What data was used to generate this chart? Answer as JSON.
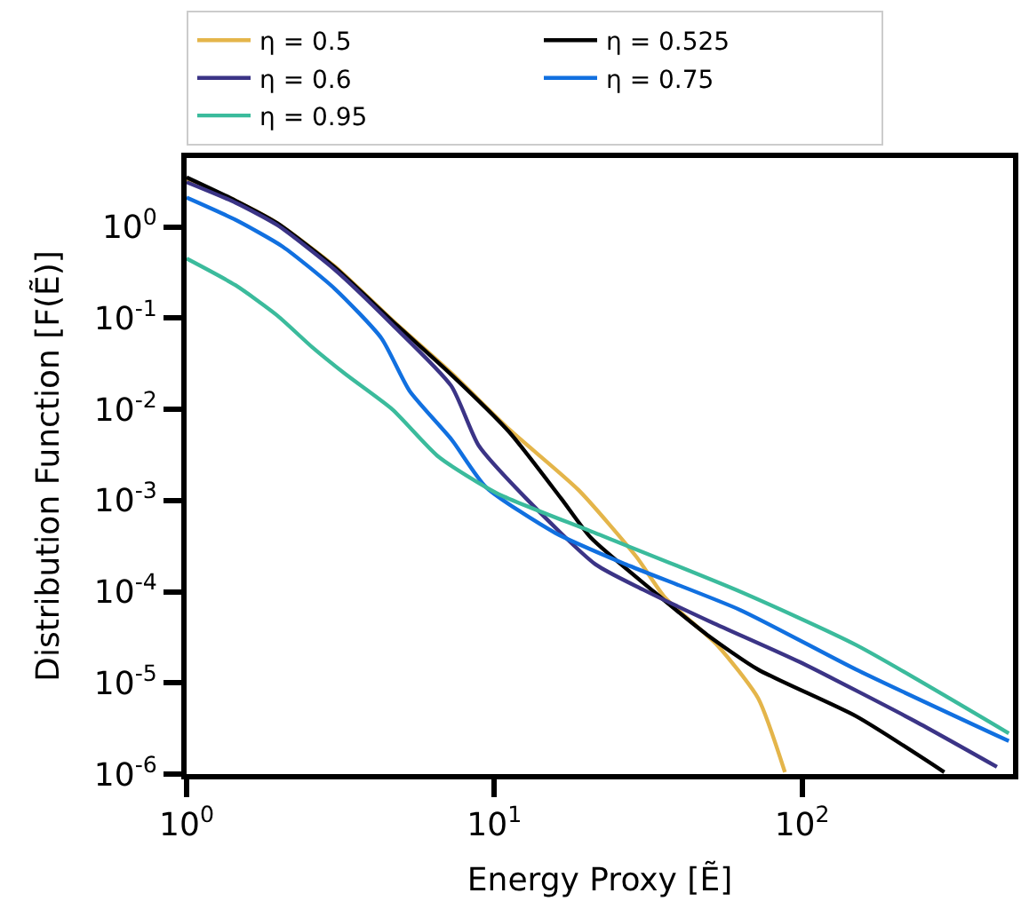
{
  "chart_data": {
    "type": "line",
    "xlabel": "Energy Proxy [Ẽ]",
    "ylabel": "Distribution Function [F(Ẽ)]",
    "log": "xy",
    "legend": "top",
    "marker": "none",
    "line_style": "solid",
    "xlim": [
      1,
      485
    ],
    "ylim": [
      1e-06,
      5.7
    ],
    "xticks": [
      {
        "value": 1,
        "label": "10$^{0}$"
      },
      {
        "value": 10,
        "label": "10$^{1}$"
      },
      {
        "value": 100,
        "label": "10$^{2}$"
      }
    ],
    "yticks": [
      {
        "value": 1e-06,
        "label": "10$^{-6}$"
      },
      {
        "value": 1e-05,
        "label": "10$^{-5}$"
      },
      {
        "value": 0.0001,
        "label": "10$^{-4}$"
      },
      {
        "value": 0.001,
        "label": "10$^{-3}$"
      },
      {
        "value": 0.01,
        "label": "10$^{-2}$"
      },
      {
        "value": 0.1,
        "label": "10$^{-1}$"
      },
      {
        "value": 1,
        "label": "10$^{0}$"
      }
    ],
    "series": [
      {
        "name": "η = 0.5",
        "color": "#e4b54a",
        "x": [
          1,
          1.44,
          1.97,
          3.03,
          4.66,
          7.25,
          11.2,
          18.8,
          29,
          36,
          53,
          72,
          88
        ],
        "values": [
          3.3,
          1.95,
          1.1,
          0.37,
          0.095,
          0.025,
          0.006,
          0.0013,
          0.00024,
          8.5e-05,
          2.6e-05,
          6.8e-06,
          1.05e-06
        ]
      },
      {
        "name": "η = 0.525",
        "color": "#000000",
        "x": [
          1,
          1.44,
          1.97,
          3.03,
          4.66,
          7.25,
          11.2,
          16.5,
          20.6,
          33,
          49,
          72,
          150,
          290
        ],
        "values": [
          3.5,
          1.95,
          1.1,
          0.36,
          0.093,
          0.024,
          0.0056,
          0.00105,
          0.00039,
          0.0001,
          3.4e-05,
          1.4e-05,
          4.3e-06,
          1.05e-06
        ]
      },
      {
        "name": "η = 0.6",
        "color": "#3b3486",
        "x": [
          1,
          1.44,
          1.97,
          3.03,
          4.66,
          7.25,
          8.9,
          12.7,
          21.3,
          30.5,
          51,
          98,
          233,
          430
        ],
        "values": [
          3.1,
          1.85,
          1.05,
          0.34,
          0.085,
          0.018,
          0.004,
          0.00105,
          0.0002,
          0.000105,
          4.6e-05,
          1.7e-05,
          3.8e-06,
          1.2e-06
        ]
      },
      {
        "name": "η = 0.75",
        "color": "#1170e0",
        "x": [
          1,
          1.44,
          2.05,
          3.03,
          4.3,
          5.3,
          7.25,
          9.4,
          15.8,
          26.7,
          63,
          150,
          470
        ],
        "values": [
          2.1,
          1.2,
          0.61,
          0.21,
          0.06,
          0.016,
          0.0047,
          0.0014,
          0.00044,
          0.0002,
          6.3e-05,
          1.4e-05,
          2.3e-06
        ]
      },
      {
        "name": "η = 0.95",
        "color": "#3bbb9c",
        "x": [
          1,
          1.44,
          1.97,
          2.56,
          3.3,
          4.66,
          6.6,
          10.2,
          21.3,
          63,
          150,
          470
        ],
        "values": [
          0.45,
          0.23,
          0.107,
          0.048,
          0.024,
          0.01,
          0.003,
          0.0012,
          0.00044,
          0.0001,
          2.6e-05,
          2.8e-06
        ]
      }
    ]
  }
}
